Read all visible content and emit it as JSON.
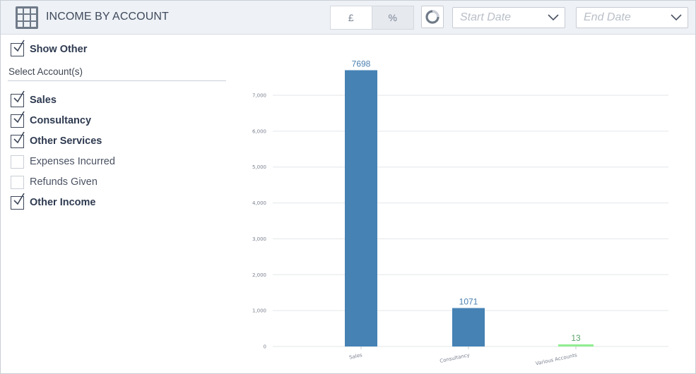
{
  "header": {
    "title": "INCOME BY ACCOUNT",
    "toggle": {
      "pound_label": "£",
      "percent_label": "%",
      "active": "percent"
    },
    "start_date_placeholder": "Start Date",
    "end_date_placeholder": "End Date",
    "icons": [
      "grid-icon",
      "refresh-icon",
      "chevron-down-icon"
    ]
  },
  "sidebar": {
    "show_other": {
      "label": "Show Other",
      "checked": true
    },
    "section_label": "Select Account(s)",
    "accounts": [
      {
        "label": "Sales",
        "checked": true
      },
      {
        "label": "Consultancy",
        "checked": true
      },
      {
        "label": "Other Services",
        "checked": true
      },
      {
        "label": "Expenses Incurred",
        "checked": false
      },
      {
        "label": "Refunds Given",
        "checked": false
      },
      {
        "label": "Other Income",
        "checked": true
      }
    ]
  },
  "colors": {
    "bar_primary": "#4682b4",
    "bar_other": "#90ee90",
    "label_primary": "#4a7fb0",
    "label_other": "#5aa16a",
    "gridline": "#e3e6ea"
  },
  "chart_data": {
    "type": "bar",
    "categories": [
      "Sales",
      "Consultancy",
      "Various Accounts"
    ],
    "values": [
      7698,
      1071,
      13
    ],
    "data_labels": [
      "7698",
      "1071",
      "13"
    ],
    "ylim": [
      0,
      8000
    ],
    "yticks": [
      0,
      1000,
      2000,
      3000,
      4000,
      5000,
      6000,
      7000
    ],
    "ytick_labels": [
      "0",
      "1,000",
      "2,000",
      "3,000",
      "4,000",
      "5,000",
      "6,000",
      "7,000"
    ],
    "grid": true,
    "xtick_rotation": "slanted"
  }
}
